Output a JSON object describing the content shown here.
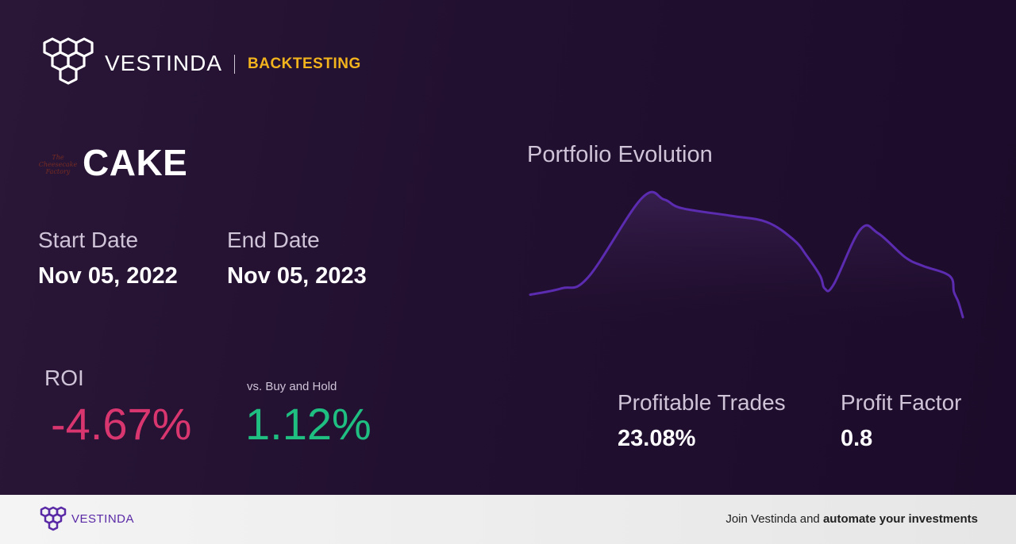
{
  "header": {
    "brand": "VESTINDA",
    "badge": "BACKTESTING",
    "logo_icon": "vestinda-hexagon-logo-icon"
  },
  "asset": {
    "ticker": "CAKE",
    "logo_text": "The Cheesecake Factory"
  },
  "dates": {
    "start_label": "Start Date",
    "start_value": "Nov 05, 2022",
    "end_label": "End Date",
    "end_value": "Nov 05, 2023"
  },
  "roi": {
    "label": "ROI",
    "value": "-4.67%",
    "vs_label": "vs. Buy and Hold",
    "vs_value": "1.12%",
    "negative_color": "#d9366f",
    "positive_color": "#1fbe81"
  },
  "stats": {
    "profitable_trades_label": "Profitable Trades",
    "profitable_trades_value": "23.08%",
    "profit_factor_label": "Profit Factor",
    "profit_factor_value": "0.8"
  },
  "chart_title": "Portfolio Evolution",
  "chart_data": {
    "type": "area",
    "title": "Portfolio Evolution",
    "xlabel": "",
    "ylabel": "",
    "grid": false,
    "legend": "none",
    "line_color": "#5b2bb0",
    "x": [
      0,
      0.07,
      0.13,
      0.25,
      0.3,
      0.34,
      0.45,
      0.53,
      0.59,
      0.62,
      0.65,
      0.66,
      0.68,
      0.74,
      0.78,
      0.84,
      0.88,
      0.94,
      0.95,
      0.96,
      0.97
    ],
    "values": [
      0.18,
      0.23,
      0.32,
      0.95,
      0.94,
      0.87,
      0.81,
      0.76,
      0.62,
      0.49,
      0.33,
      0.23,
      0.26,
      0.7,
      0.67,
      0.48,
      0.41,
      0.33,
      0.2,
      0.12,
      0.0
    ]
  },
  "footer": {
    "brand": "VESTINDA",
    "cta_prefix": "Join Vestinda and ",
    "cta_bold": "automate your investments"
  }
}
